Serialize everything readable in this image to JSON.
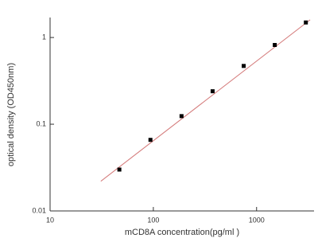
{
  "chart_data": {
    "type": "scatter",
    "xlabel": "mCD8A concentration(pg/ml )",
    "ylabel": "optical density (OD450nm)",
    "xscale": "log",
    "yscale": "log",
    "xlim": [
      10,
      3600
    ],
    "ylim": [
      0.01,
      1.7
    ],
    "xticks": [
      10,
      100,
      1000
    ],
    "yticks": [
      0.01,
      0.1,
      1
    ],
    "points": {
      "color": "#000000",
      "x": [
        46.875,
        93.75,
        187.5,
        375,
        750,
        1500,
        3000
      ],
      "y": [
        0.03,
        0.066,
        0.124,
        0.24,
        0.47,
        0.82,
        1.49
      ]
    },
    "fit_line": {
      "color": "#d47a7a",
      "x": [
        31,
        3300
      ],
      "y": [
        0.022,
        1.6
      ]
    }
  }
}
